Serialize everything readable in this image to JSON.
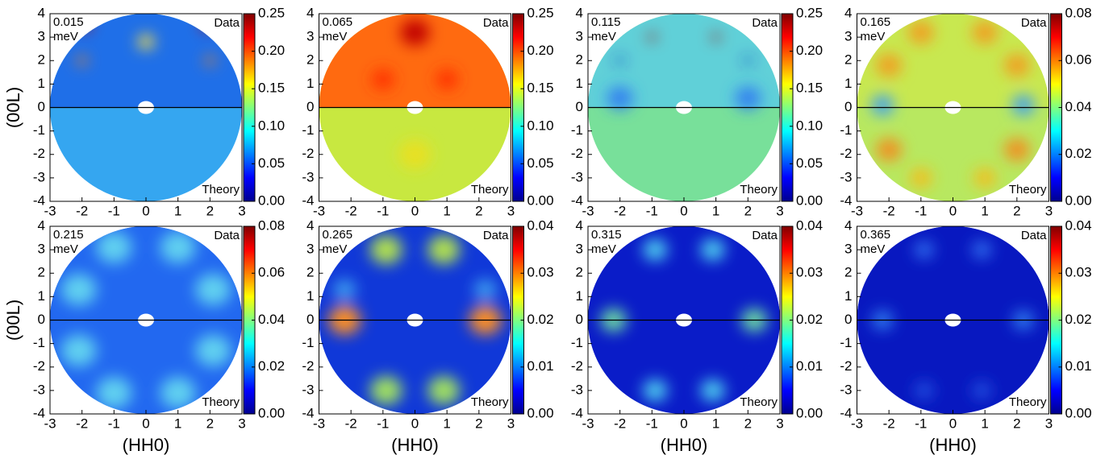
{
  "chart_data": [
    {
      "type": "heatmap",
      "annotation": [
        "0.015",
        "meV"
      ],
      "data_label": "Data",
      "theory_label": "Theory",
      "ylabel": "(00L)",
      "xlim": [
        -3,
        3
      ],
      "ylim": [
        -4,
        4
      ],
      "xticks": [
        -3,
        -2,
        -1,
        0,
        1,
        2,
        3
      ],
      "yticks": [
        -4,
        -3,
        -2,
        -1,
        0,
        1,
        2,
        3,
        4
      ],
      "colormap": "jet",
      "clim": [
        0,
        0.25
      ],
      "cticks": [
        {
          "value": 0,
          "label": "0.00"
        },
        0.05,
        {
          "value": 0.1,
          "label": "0.10"
        },
        0.15,
        {
          "value": 0.2,
          "label": "0.20"
        },
        0.25
      ]
    },
    {
      "type": "heatmap",
      "annotation": [
        "0.065",
        "meV"
      ],
      "data_label": "Data",
      "theory_label": "Theory",
      "xlim": [
        -3,
        3
      ],
      "ylim": [
        -4,
        4
      ],
      "xticks": [
        -3,
        -2,
        -1,
        0,
        1,
        2,
        3
      ],
      "yticks": [
        -4,
        -3,
        -2,
        -1,
        0,
        1,
        2,
        3,
        4
      ],
      "colormap": "jet",
      "clim": [
        0,
        0.25
      ],
      "cticks": [
        {
          "value": 0,
          "label": "0.00"
        },
        0.05,
        {
          "value": 0.1,
          "label": "0.10"
        },
        0.15,
        {
          "value": 0.2,
          "label": "0.20"
        },
        0.25
      ]
    },
    {
      "type": "heatmap",
      "annotation": [
        "0.115",
        "meV"
      ],
      "data_label": "Data",
      "theory_label": "Theory",
      "xlim": [
        -3,
        3
      ],
      "ylim": [
        -4,
        4
      ],
      "xticks": [
        -3,
        -2,
        -1,
        0,
        1,
        2,
        3
      ],
      "yticks": [
        -4,
        -3,
        -2,
        -1,
        0,
        1,
        2,
        3,
        4
      ],
      "colormap": "jet",
      "clim": [
        0,
        0.25
      ],
      "cticks": [
        {
          "value": 0,
          "label": "0.00"
        },
        0.05,
        {
          "value": 0.1,
          "label": "0.10"
        },
        0.15,
        {
          "value": 0.2,
          "label": "0.20"
        },
        0.25
      ]
    },
    {
      "type": "heatmap",
      "annotation": [
        "0.165",
        "meV"
      ],
      "data_label": "Data",
      "theory_label": "Theory",
      "xlim": [
        -3,
        3
      ],
      "ylim": [
        -4,
        4
      ],
      "xticks": [
        -3,
        -2,
        -1,
        0,
        1,
        2,
        3
      ],
      "yticks": [
        -4,
        -3,
        -2,
        -1,
        0,
        1,
        2,
        3,
        4
      ],
      "colormap": "jet",
      "clim": [
        0,
        0.08
      ],
      "cticks": [
        {
          "value": 0,
          "label": "0.00"
        },
        0.02,
        0.04,
        0.06,
        0.08
      ]
    },
    {
      "type": "heatmap",
      "annotation": [
        "0.215",
        "meV"
      ],
      "data_label": "Data",
      "theory_label": "Theory",
      "xlabel": "(HH0)",
      "ylabel": "(00L)",
      "xlim": [
        -3,
        3
      ],
      "ylim": [
        -4,
        4
      ],
      "xticks": [
        -3,
        -2,
        -1,
        0,
        1,
        2,
        3
      ],
      "yticks": [
        -4,
        -3,
        -2,
        -1,
        0,
        1,
        2,
        3,
        4
      ],
      "colormap": "jet",
      "clim": [
        0,
        0.08
      ],
      "cticks": [
        {
          "value": 0,
          "label": "0.00"
        },
        0.02,
        0.04,
        0.06,
        0.08
      ]
    },
    {
      "type": "heatmap",
      "annotation": [
        "0.265",
        "meV"
      ],
      "data_label": "Data",
      "theory_label": "Theory",
      "xlabel": "(HH0)",
      "xlim": [
        -3,
        3
      ],
      "ylim": [
        -4,
        4
      ],
      "xticks": [
        -3,
        -2,
        -1,
        0,
        1,
        2,
        3
      ],
      "yticks": [
        -4,
        -3,
        -2,
        -1,
        0,
        1,
        2,
        3,
        4
      ],
      "colormap": "jet",
      "clim": [
        0,
        0.04
      ],
      "cticks": [
        {
          "value": 0,
          "label": "0.00"
        },
        0.01,
        0.02,
        0.03,
        0.04
      ]
    },
    {
      "type": "heatmap",
      "annotation": [
        "0.315",
        "meV"
      ],
      "data_label": "Data",
      "theory_label": "Theory",
      "xlabel": "(HH0)",
      "xlim": [
        -3,
        3
      ],
      "ylim": [
        -4,
        4
      ],
      "xticks": [
        -3,
        -2,
        -1,
        0,
        1,
        2,
        3
      ],
      "yticks": [
        -4,
        -3,
        -2,
        -1,
        0,
        1,
        2,
        3,
        4
      ],
      "colormap": "jet",
      "clim": [
        0,
        0.04
      ],
      "cticks": [
        {
          "value": 0,
          "label": "0.00"
        },
        0.01,
        0.02,
        0.03,
        0.04
      ]
    },
    {
      "type": "heatmap",
      "annotation": [
        "0.365",
        "meV"
      ],
      "data_label": "Data",
      "theory_label": "Theory",
      "xlabel": "(HH0)",
      "xlim": [
        -3,
        3
      ],
      "ylim": [
        -4,
        4
      ],
      "xticks": [
        -3,
        -2,
        -1,
        0,
        1,
        2,
        3
      ],
      "yticks": [
        -4,
        -3,
        -2,
        -1,
        0,
        1,
        2,
        3,
        4
      ],
      "colormap": "jet",
      "clim": [
        0,
        0.04
      ],
      "cticks": [
        {
          "value": 0,
          "label": "0.00"
        },
        0.01,
        0.02,
        0.03,
        0.04
      ]
    }
  ]
}
